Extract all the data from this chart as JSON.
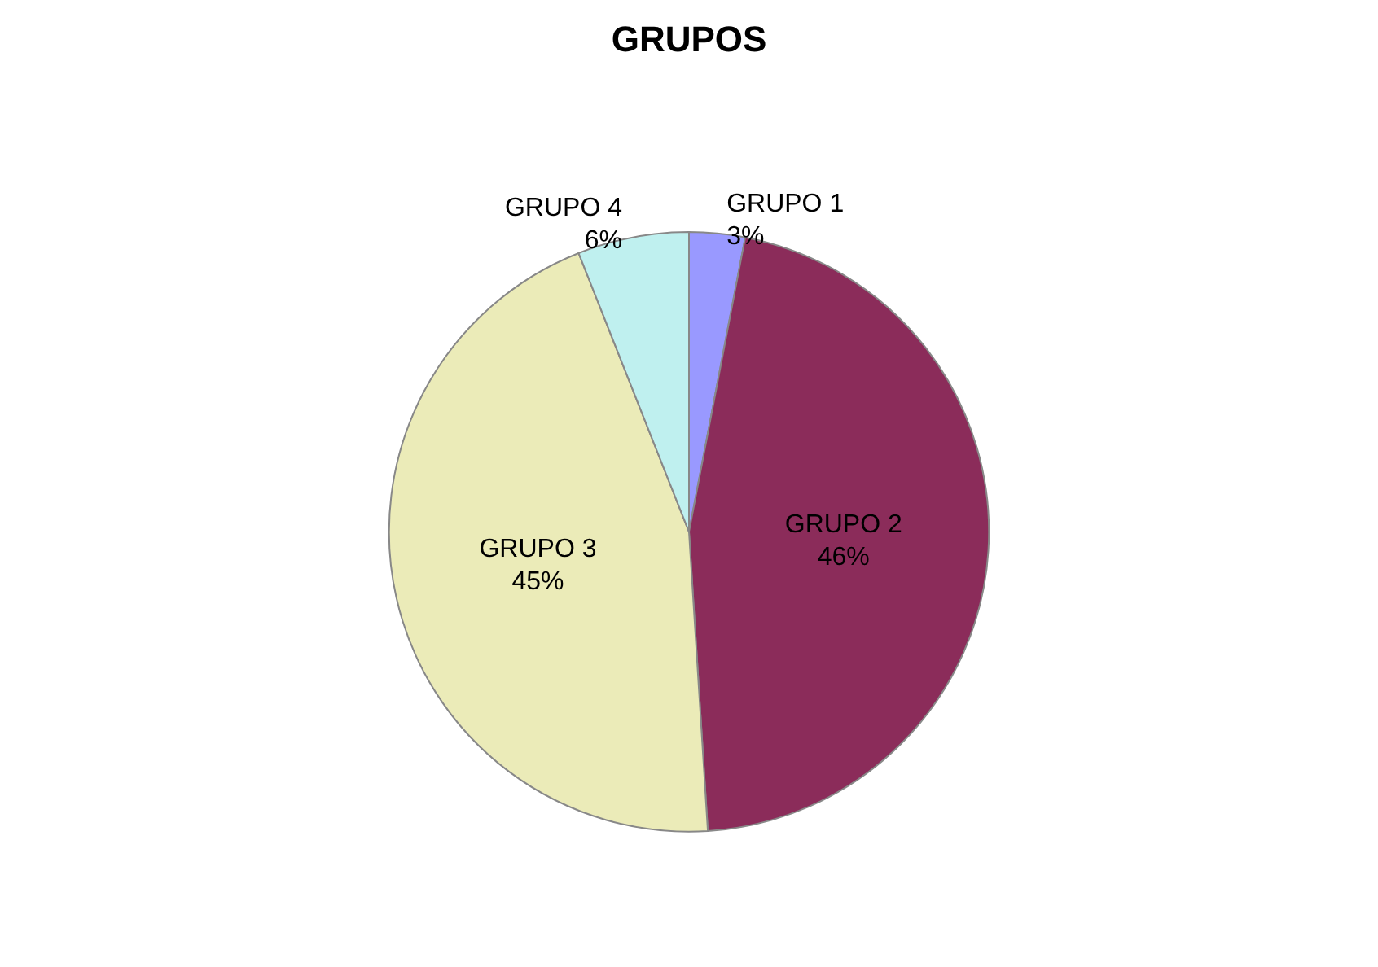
{
  "chart_data": {
    "type": "pie",
    "title": "GRUPOS",
    "categories": [
      "GRUPO 1",
      "GRUPO 2",
      "GRUPO 3",
      "GRUPO 4"
    ],
    "values": [
      3,
      46,
      45,
      6
    ],
    "value_labels": [
      "3%",
      "46%",
      "45%",
      "6%"
    ],
    "colors": [
      "#9999ff",
      "#8b2c5a",
      "#ebebb8",
      "#bff0ef"
    ],
    "legend": false
  }
}
